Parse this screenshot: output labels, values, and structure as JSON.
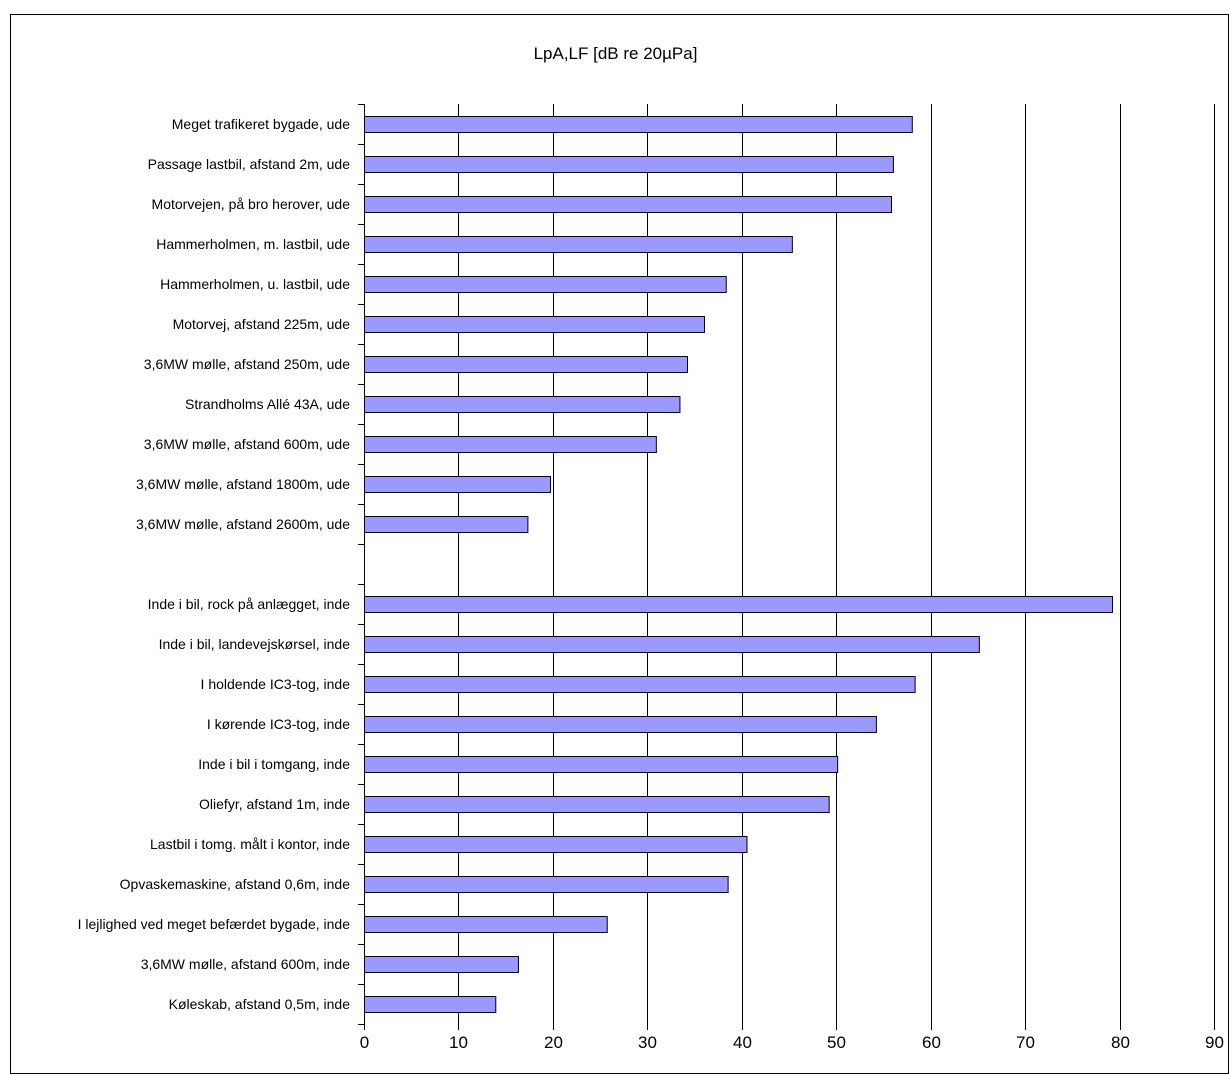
{
  "chart_data": {
    "type": "bar",
    "orientation": "horizontal",
    "title": "LpA,LF [dB re 20µPa]",
    "categories": [
      "Meget trafikeret bygade, ude",
      "Passage lastbil, afstand 2m, ude",
      "Motorvejen, på bro herover, ude",
      "Hammerholmen, m. lastbil, ude",
      "Hammerholmen, u. lastbil, ude",
      "Motorvej, afstand 225m, ude",
      "3,6MW mølle, afstand 250m, ude",
      "Strandholms Allé 43A, ude",
      "3,6MW mølle, afstand 600m, ude",
      "3,6MW mølle, afstand 1800m, ude",
      "3,6MW mølle, afstand 2600m, ude",
      "",
      "Inde i bil, rock på anlægget, inde",
      "Inde i bil, landevejskørsel, inde",
      "I holdende IC3-tog, inde",
      "I kørende IC3-tog, inde",
      "Inde i bil i tomgang, inde",
      "Oliefyr, afstand 1m, inde",
      "Lastbil i tomg. målt i kontor, inde",
      "Opvaskemaskine, afstand 0,6m, inde",
      "I lejlighed ved meget befærdet bygade, inde",
      "3,6MW mølle, afstand 600m, inde",
      "Køleskab, afstand 0,5m, inde"
    ],
    "values": [
      58,
      56,
      55.8,
      45.3,
      38.3,
      36,
      34.2,
      33.4,
      30.9,
      19.7,
      17.3,
      null,
      79.2,
      65.1,
      58.3,
      54.2,
      50.1,
      49.2,
      40.5,
      38.5,
      25.7,
      16.3,
      13.9
    ],
    "xlim": [
      0,
      90
    ],
    "xticks": [
      0,
      10,
      20,
      30,
      40,
      50,
      60,
      70,
      80,
      90
    ],
    "xlabel": "",
    "ylabel": "",
    "grid": "vertical",
    "legend": "none",
    "bar_color": "#9999ff",
    "bar_edge_color": "#000000",
    "grid_color": "#000000"
  }
}
